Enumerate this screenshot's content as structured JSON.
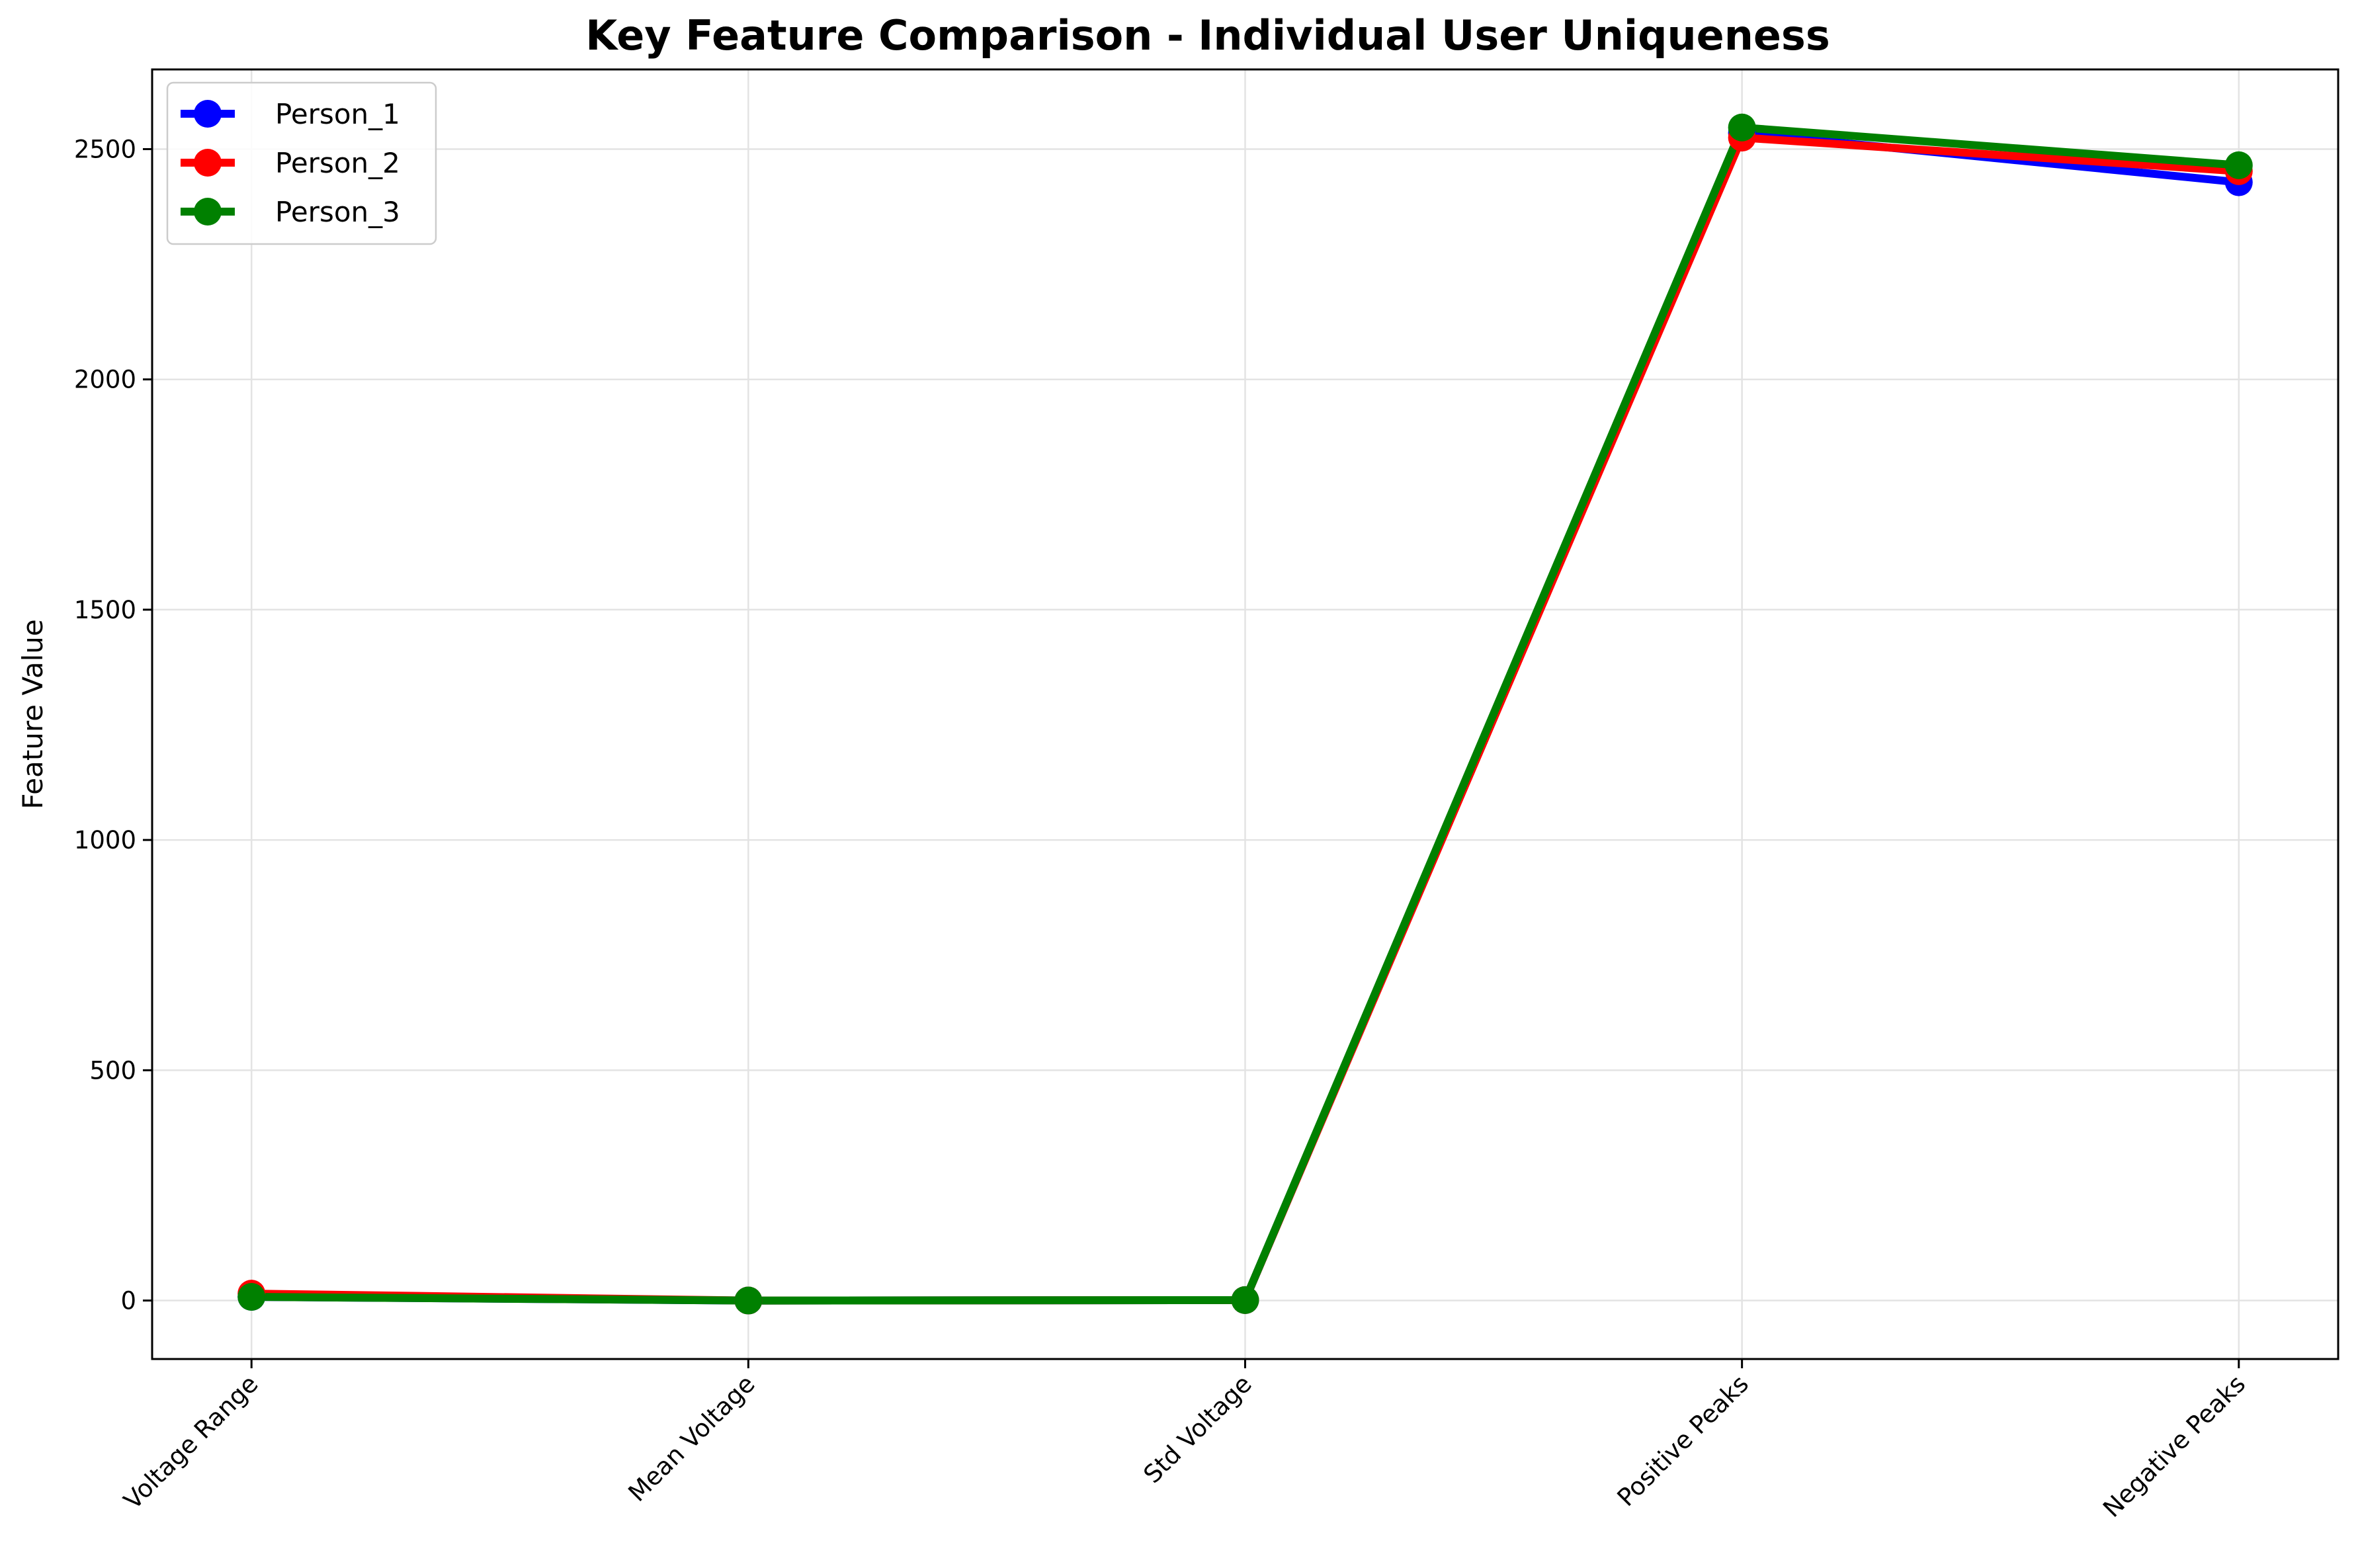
{
  "chart_data": {
    "type": "line",
    "title": "Key Feature Comparison - Individual User Uniqueness",
    "xlabel": "",
    "ylabel": "Feature Value",
    "categories": [
      "Voltage Range",
      "Mean Voltage",
      "Std Voltage",
      "Positive Peaks",
      "Negative Peaks"
    ],
    "series": [
      {
        "name": "Person_1",
        "color": "#0000ff",
        "values": [
          8,
          0,
          1,
          2535,
          2428
        ]
      },
      {
        "name": "Person_2",
        "color": "#ff0000",
        "values": [
          15,
          0,
          1,
          2525,
          2452
        ]
      },
      {
        "name": "Person_3",
        "color": "#008000",
        "values": [
          8,
          0,
          1,
          2547,
          2465
        ]
      }
    ],
    "ylim": [
      -127,
      2673
    ],
    "yticks": [
      0,
      500,
      1000,
      1500,
      2000,
      2500
    ],
    "grid": true,
    "legend_position": "upper-left"
  }
}
